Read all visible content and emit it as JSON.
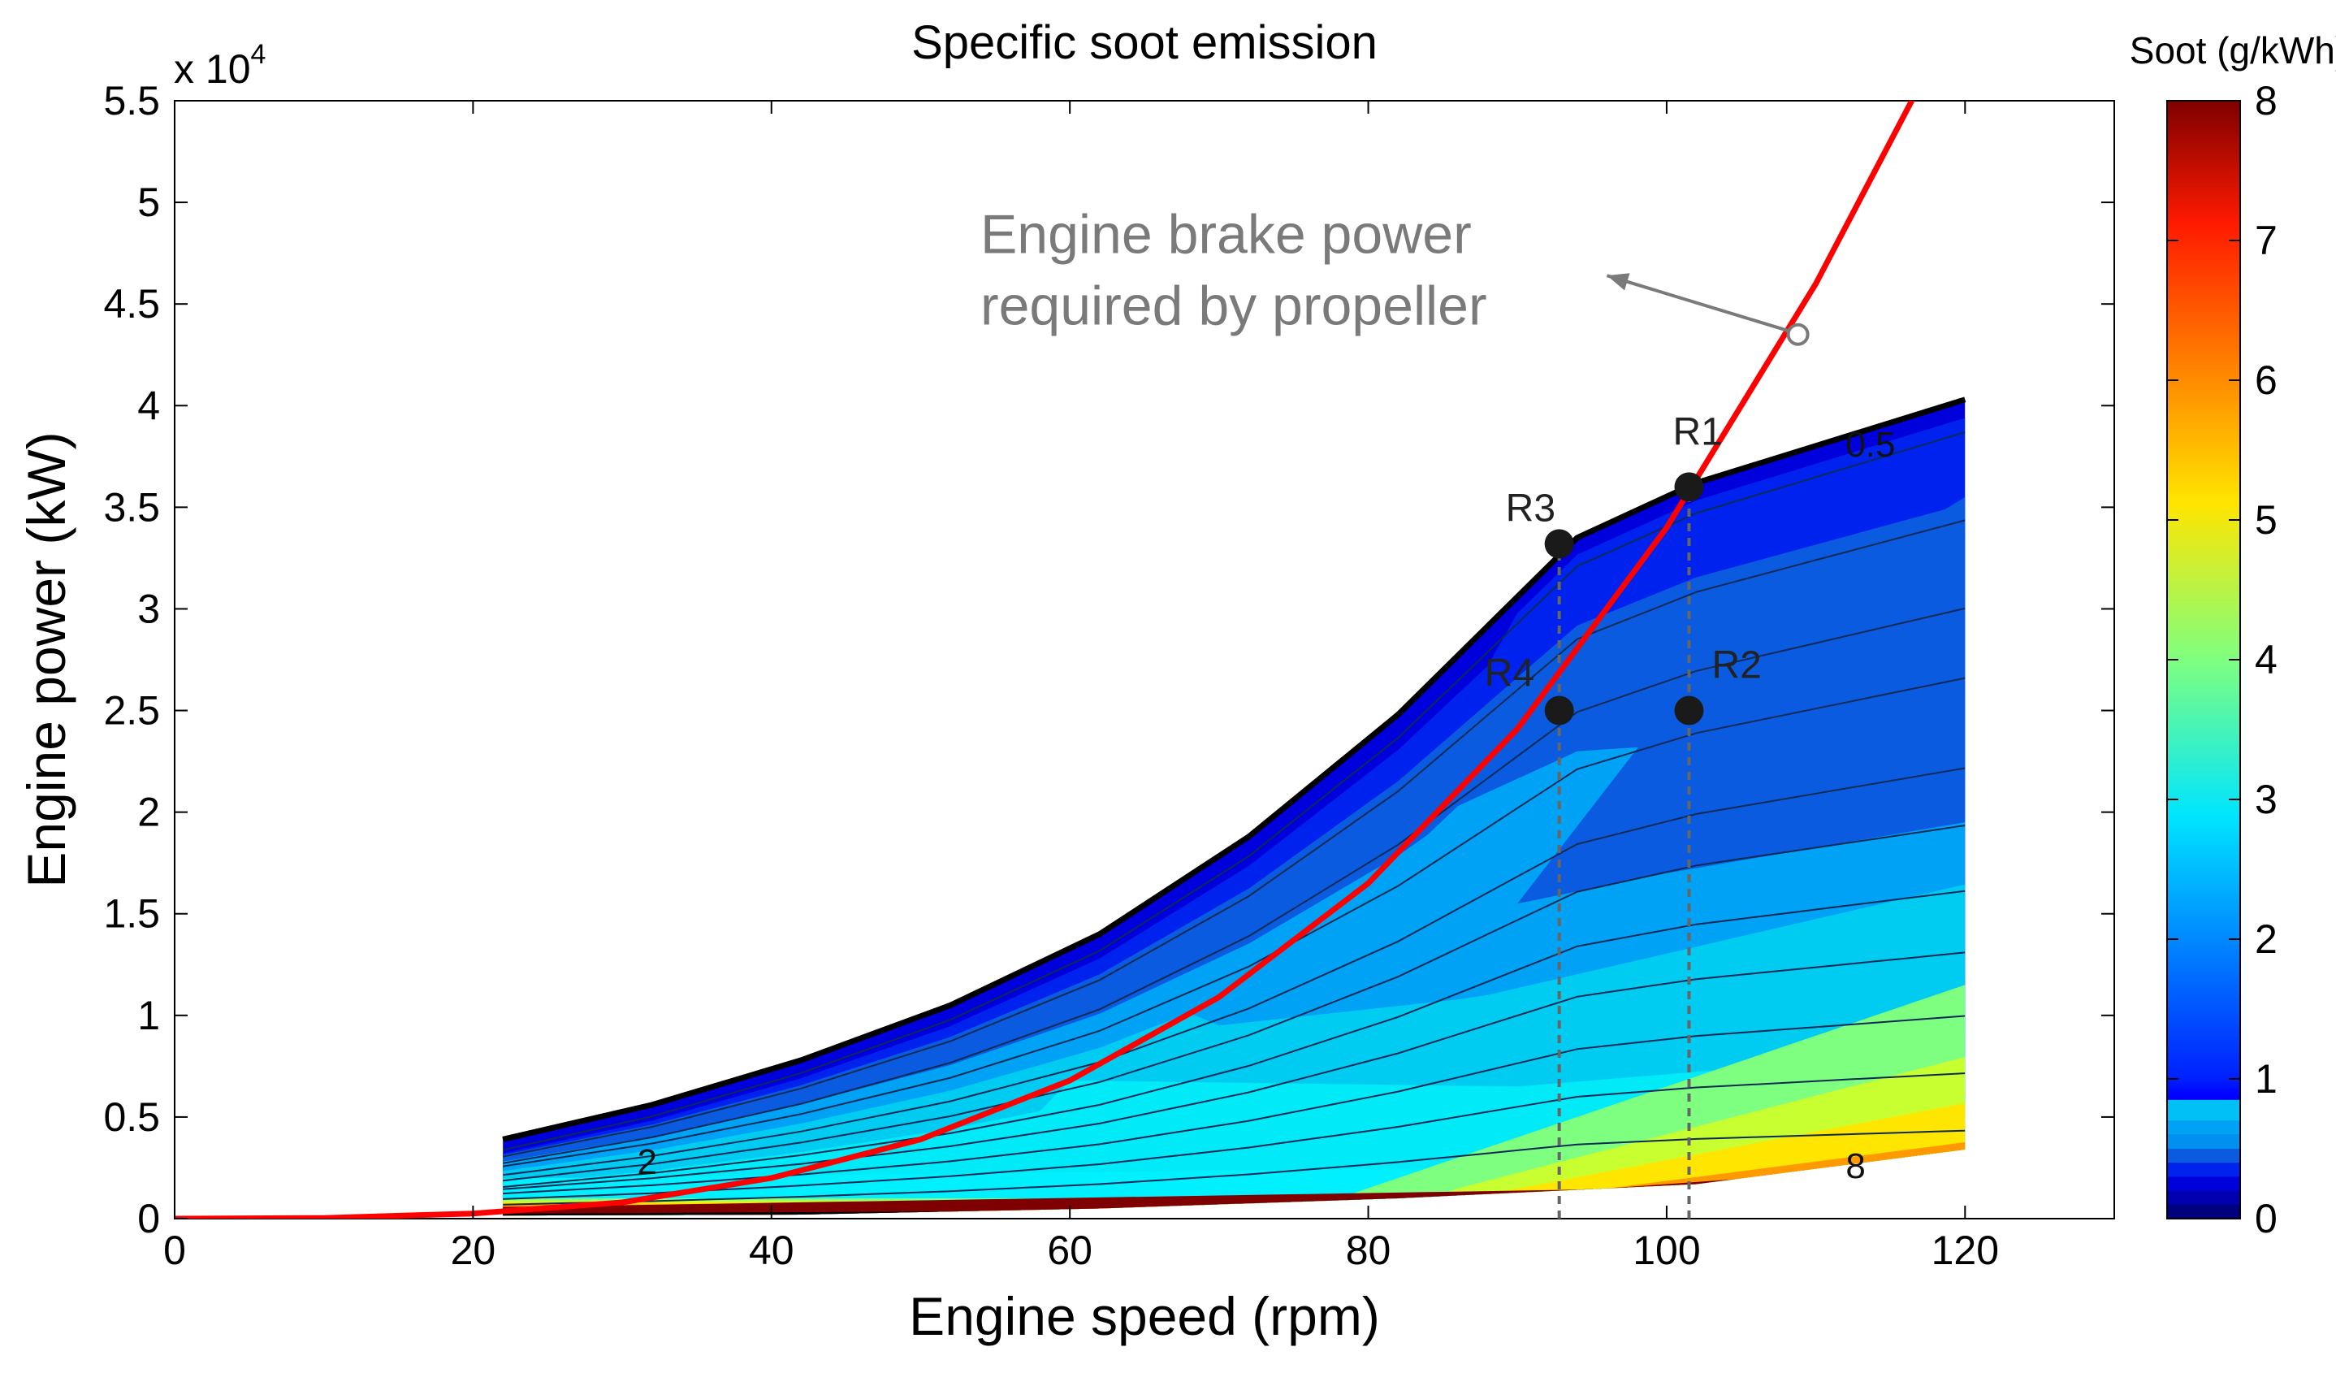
{
  "chart_data": {
    "type": "contour",
    "title": "Specific soot emission",
    "xlabel": "Engine speed (rpm)",
    "ylabel": "Engine power (kW)",
    "xlim": [
      0,
      130
    ],
    "ylim": [
      0,
      55000
    ],
    "x_ticks": [
      0,
      20,
      40,
      60,
      80,
      100,
      120
    ],
    "x_tick_labels": [
      "0",
      "20",
      "40",
      "60",
      "80",
      "100",
      "120"
    ],
    "y_ticks": [
      0,
      5000,
      10000,
      15000,
      20000,
      25000,
      30000,
      35000,
      40000,
      45000,
      50000,
      55000
    ],
    "y_tick_labels": [
      "0",
      "0.5",
      "1",
      "1.5",
      "2",
      "2.5",
      "3",
      "3.5",
      "4",
      "4.5",
      "5",
      "5.5"
    ],
    "y_exponent_label": "x 10",
    "y_exponent_power": "4",
    "grid": false,
    "colorbar": {
      "title": "Soot (g/kWh)",
      "range": [
        0,
        8
      ],
      "ticks": [
        0,
        1,
        2,
        3,
        4,
        5,
        6,
        7,
        8
      ],
      "tick_labels": [
        "0",
        "1",
        "2",
        "3",
        "4",
        "5",
        "6",
        "7",
        "8"
      ],
      "colormap": "jet"
    },
    "envelope": {
      "upper": [
        [
          22,
          3900
        ],
        [
          32,
          5600
        ],
        [
          42,
          7800
        ],
        [
          52,
          10500
        ],
        [
          62,
          14000
        ],
        [
          72,
          18800
        ],
        [
          82,
          24800
        ],
        [
          94,
          33500
        ],
        [
          102,
          36200
        ],
        [
          120,
          40300
        ]
      ],
      "lower": [
        [
          120,
          3400
        ],
        [
          102,
          1700
        ],
        [
          82,
          1000
        ],
        [
          62,
          500
        ],
        [
          42,
          200
        ],
        [
          22,
          150
        ]
      ]
    },
    "propeller_curve": {
      "name": "Engine brake power required by propeller",
      "x": [
        0,
        10,
        20,
        30,
        40,
        50,
        60,
        70,
        80,
        90,
        100,
        110,
        120
      ],
      "y": [
        0,
        30,
        250,
        800,
        2000,
        3900,
        6800,
        10900,
        16500,
        24100,
        34000,
        46000,
        60000
      ]
    },
    "points": [
      {
        "label": "R1",
        "x": 101.5,
        "y": 36000
      },
      {
        "label": "R2",
        "x": 101.5,
        "y": 25000
      },
      {
        "label": "R3",
        "x": 92.8,
        "y": 33200
      },
      {
        "label": "R4",
        "x": 92.8,
        "y": 25000
      }
    ],
    "contour_labels": [
      {
        "text": "0.5",
        "x": 112,
        "y": 37500
      },
      {
        "text": "2",
        "x": 31,
        "y": 2200
      },
      {
        "text": "8",
        "x": 112,
        "y": 2000
      }
    ],
    "annotation": {
      "line1": "Engine brake power",
      "line2": "required by propeller",
      "text_x": 54,
      "text_y": 47500,
      "arrow_to_x": 108.8,
      "arrow_to_y": 43500,
      "arrow_head_x": 96,
      "arrow_head_y": 46400
    }
  }
}
